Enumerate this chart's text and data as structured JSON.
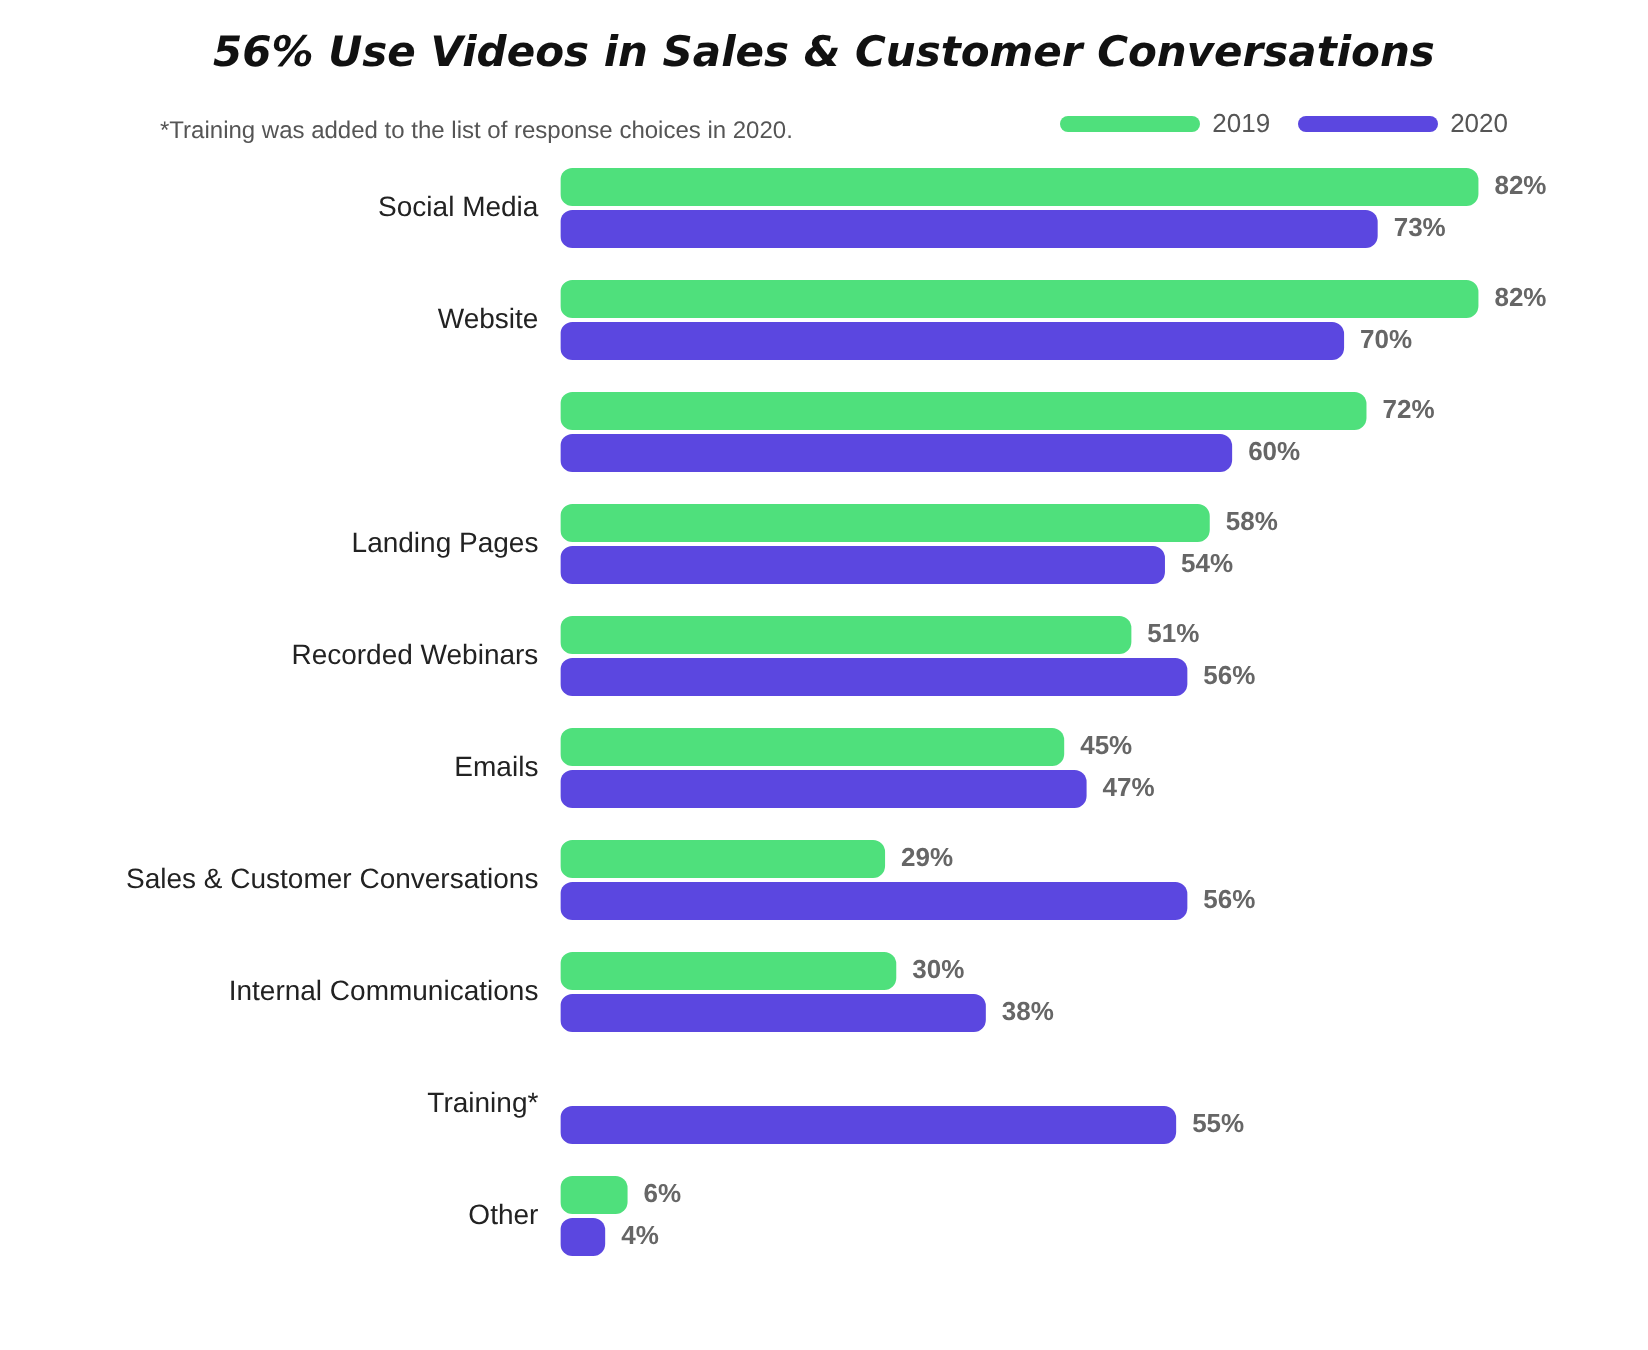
{
  "chart_data": {
    "type": "bar",
    "orientation": "horizontal",
    "title": "56% Use Videos in Sales & Customer Conversations",
    "annotations": [
      "*Training was added to the list of response choices in 2020."
    ],
    "categories": [
      "Social Media",
      "Website",
      null,
      "Landing Pages",
      "Recorded Webinars",
      "Emails",
      "Sales & Customer Conversations",
      "Internal Communications",
      "Training*",
      "Other"
    ],
    "series": [
      {
        "name": "2019",
        "color": "#4fe07c",
        "values": [
          82,
          82,
          72,
          58,
          51,
          45,
          29,
          30,
          null,
          6
        ],
        "value_labels": [
          "82%",
          "82%",
          "72%",
          "58%",
          "51%",
          "45%",
          "29%",
          "30%",
          null,
          "6%"
        ]
      },
      {
        "name": "2020",
        "color": "#5b47e0",
        "values": [
          73,
          70,
          60,
          54,
          56,
          47,
          56,
          38,
          55,
          4
        ],
        "value_labels": [
          "73%",
          "70%",
          "60%",
          "54%",
          "56%",
          "47%",
          "56%",
          "38%",
          "55%",
          "4%"
        ]
      }
    ],
    "legend": "top right"
  }
}
